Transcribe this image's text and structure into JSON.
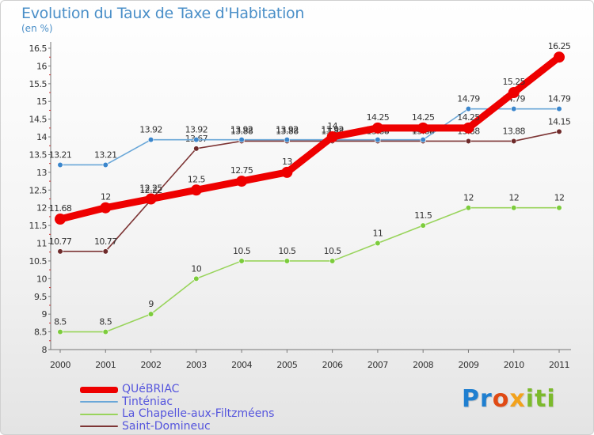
{
  "chart_data": {
    "type": "line",
    "title": "Evolution du Taux de Taxe d'Habitation",
    "ylabel": "(en %)",
    "xlabel": "",
    "categories": [
      "2000",
      "2001",
      "2002",
      "2003",
      "2004",
      "2005",
      "2006",
      "2007",
      "2008",
      "2009",
      "2010",
      "2011"
    ],
    "ylim": [
      8,
      16.5
    ],
    "yticks": [
      "8",
      "8.5",
      "9",
      "9.5",
      "10",
      "10.5",
      "11",
      "11.5",
      "12",
      "12.5",
      "13",
      "13.5",
      "14",
      "14.5",
      "15",
      "15.5",
      "16",
      "16.5"
    ],
    "grid": false,
    "legend_position": "bottom-left",
    "series": [
      {
        "name": "La Chapelle-aux-Filtzméens",
        "color": "#99d45c",
        "marker": "#7ccc3c",
        "values": [
          8.5,
          8.5,
          9,
          10,
          10.5,
          10.5,
          10.5,
          11,
          11.5,
          12,
          12,
          12
        ],
        "labels": [
          "8.5",
          "8.5",
          "9",
          "10",
          "10.5",
          "10.5",
          "10.5",
          "11",
          "11.5",
          "12",
          "12",
          "12"
        ]
      },
      {
        "name": "Saint-Domineuc",
        "color": "#7d3535",
        "marker": "#6e2a2a",
        "values": [
          10.77,
          10.77,
          12.22,
          13.67,
          13.88,
          13.88,
          13.88,
          13.88,
          13.88,
          13.88,
          13.88,
          14.15
        ],
        "labels": [
          "10.77",
          "10.77",
          "12.22",
          "13.67",
          "13.88",
          "13.88",
          "13.88",
          "13.88",
          "13.88",
          "13.88",
          "13.88",
          "14.15"
        ]
      },
      {
        "name": "Tinténiac",
        "color": "#6aa7d8",
        "marker": "#3b86cc",
        "values": [
          13.21,
          13.21,
          13.92,
          13.92,
          13.92,
          13.92,
          13.92,
          13.92,
          13.92,
          14.79,
          14.79,
          14.79
        ],
        "labels": [
          "13.21",
          "13.21",
          "13.92",
          "13.92",
          "13.92",
          "13.92",
          "13.92",
          "13.92",
          "13.92",
          "14.79",
          "14.79",
          "14.79"
        ]
      },
      {
        "name": "QUéBRIAC",
        "color": "#ee0000",
        "marker": "#ee0000",
        "values": [
          11.68,
          12,
          12.25,
          12.5,
          12.75,
          13,
          14,
          14.25,
          14.25,
          14.25,
          15.25,
          16.25
        ],
        "labels": [
          "11.68",
          "12",
          "12.25",
          "12.5",
          "12.75",
          "13",
          "14",
          "14.25",
          "14.25",
          "14.25",
          "15.25",
          "16.25"
        ]
      }
    ],
    "legend": [
      {
        "name": "QUéBRIAC",
        "color": "#ee0000"
      },
      {
        "name": "Tinténiac",
        "color": "#6aa7d8"
      },
      {
        "name": "La Chapelle-aux-Filtzméens",
        "color": "#99d45c"
      },
      {
        "name": "Saint-Domineuc",
        "color": "#7d3535"
      }
    ]
  },
  "branding": {
    "logo_letters": [
      "Pr",
      "o",
      "x",
      "iti"
    ]
  }
}
